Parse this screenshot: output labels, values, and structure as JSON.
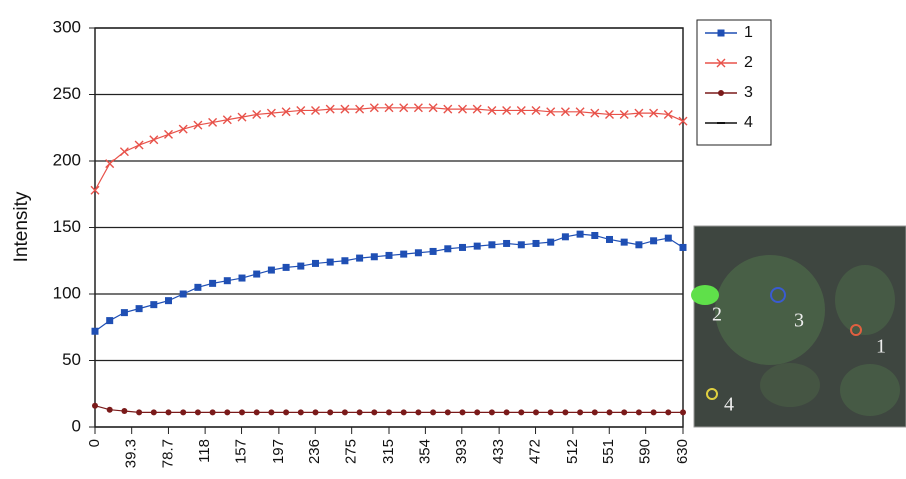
{
  "chart_data": {
    "type": "line",
    "y_label": "Intensity",
    "x": [
      0,
      15.75,
      31.5,
      47.25,
      63,
      78.75,
      94.5,
      110.25,
      126,
      141.75,
      157.5,
      173.25,
      189,
      204.75,
      220.5,
      236.25,
      252,
      267.75,
      283.5,
      299.25,
      315,
      330.75,
      346.5,
      362.25,
      378,
      393.75,
      409.5,
      425.25,
      441,
      456.75,
      472.5,
      488.25,
      504,
      519.75,
      535.5,
      551.25,
      567,
      582.75,
      598.5,
      614.25,
      630
    ],
    "series": [
      {
        "name": "1",
        "color": "#1f4fb4",
        "marker": "square",
        "values": [
          72,
          80,
          86,
          89,
          92,
          95,
          100,
          105,
          108,
          110,
          112,
          115,
          118,
          120,
          121,
          123,
          124,
          125,
          127,
          128,
          129,
          130,
          131,
          132,
          134,
          135,
          136,
          137,
          138,
          137,
          138,
          139,
          143,
          145,
          144,
          141,
          139,
          137,
          140,
          142,
          135
        ]
      },
      {
        "name": "2",
        "color": "#e8524a",
        "marker": "x",
        "values": [
          178,
          198,
          207,
          212,
          216,
          220,
          224,
          227,
          229,
          231,
          233,
          235,
          236,
          237,
          238,
          238,
          239,
          239,
          239,
          240,
          240,
          240,
          240,
          240,
          239,
          239,
          239,
          238,
          238,
          238,
          238,
          237,
          237,
          237,
          236,
          235,
          235,
          236,
          236,
          235,
          230
        ]
      },
      {
        "name": "3",
        "color": "#7a1a1a",
        "marker": "circle",
        "values": [
          16,
          13,
          12,
          11,
          11,
          11,
          11,
          11,
          11,
          11,
          11,
          11,
          11,
          11,
          11,
          11,
          11,
          11,
          11,
          11,
          11,
          11,
          11,
          11,
          11,
          11,
          11,
          11,
          11,
          11,
          11,
          11,
          11,
          11,
          11,
          11,
          11,
          11,
          11,
          11,
          11
        ]
      },
      {
        "name": "4",
        "color": "#111111",
        "marker": "dash",
        "values": [
          null,
          null,
          null,
          null,
          null,
          null,
          null,
          null,
          null,
          null,
          null,
          null,
          null,
          null,
          null,
          null,
          null,
          null,
          null,
          null,
          null,
          null,
          null,
          null,
          null,
          null,
          null,
          null,
          null,
          null,
          null,
          null,
          null,
          null,
          null,
          null,
          null,
          null,
          null,
          null,
          null
        ]
      }
    ],
    "xlim": [
      0,
      630
    ],
    "ylim": [
      0,
      300
    ],
    "xticks": [
      0,
      39.3,
      78.7,
      118,
      157,
      197,
      236,
      275,
      315,
      354,
      393,
      433,
      472,
      512,
      551,
      590,
      630
    ],
    "yticks": [
      0,
      50,
      100,
      150,
      200,
      250,
      300
    ],
    "grid": true,
    "legend": "right"
  },
  "inset_labels": [
    "2",
    "3",
    "1",
    "4"
  ]
}
